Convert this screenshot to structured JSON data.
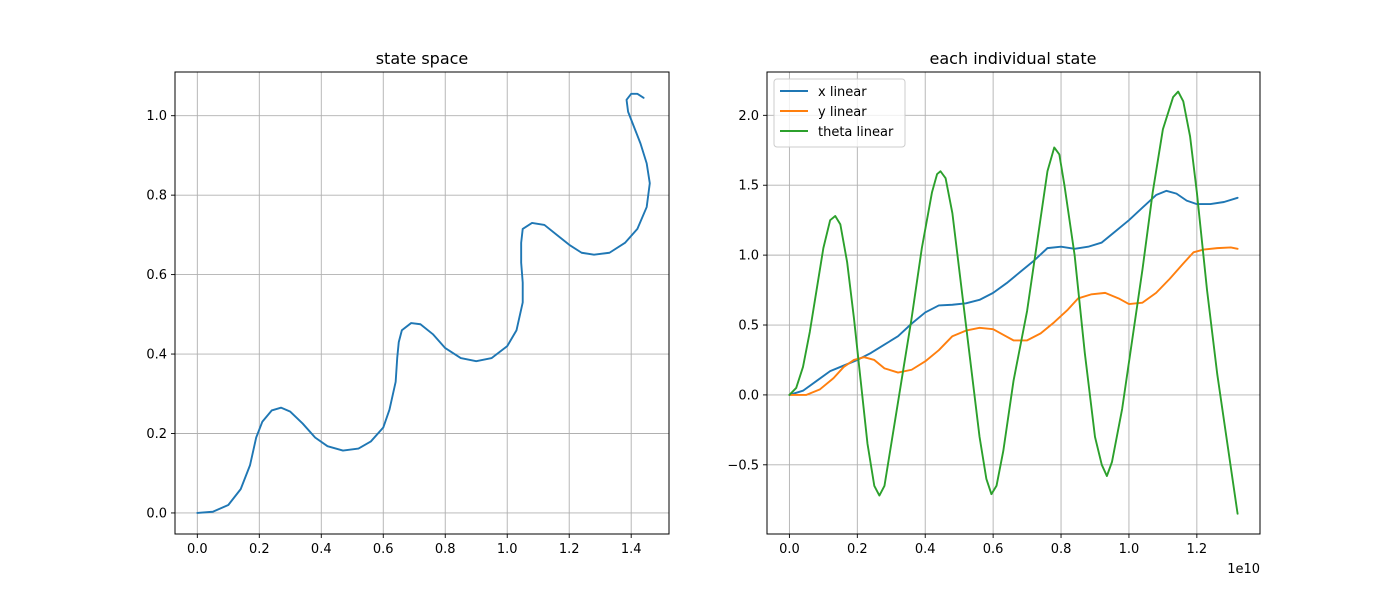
{
  "chart_data": [
    {
      "type": "line",
      "title": "state space",
      "xlabel": "",
      "ylabel": "",
      "xlim": [
        -0.072,
        1.522
      ],
      "ylim": [
        -0.053,
        1.11
      ],
      "xticks": [
        "0.0",
        "0.2",
        "0.4",
        "0.6",
        "0.8",
        "1.0",
        "1.2",
        "1.4"
      ],
      "yticks": [
        "0.0",
        "0.2",
        "0.4",
        "0.6",
        "0.8",
        "1.0"
      ],
      "grid": true,
      "series": [
        {
          "color": "#1f77b4",
          "points": [
            [
              0,
              0
            ],
            [
              0.05,
              0.003
            ],
            [
              0.1,
              0.02
            ],
            [
              0.14,
              0.06
            ],
            [
              0.17,
              0.12
            ],
            [
              0.19,
              0.19
            ],
            [
              0.21,
              0.23
            ],
            [
              0.24,
              0.258
            ],
            [
              0.27,
              0.265
            ],
            [
              0.3,
              0.255
            ],
            [
              0.34,
              0.225
            ],
            [
              0.38,
              0.19
            ],
            [
              0.42,
              0.168
            ],
            [
              0.47,
              0.157
            ],
            [
              0.52,
              0.162
            ],
            [
              0.56,
              0.18
            ],
            [
              0.6,
              0.215
            ],
            [
              0.62,
              0.26
            ],
            [
              0.64,
              0.33
            ],
            [
              0.645,
              0.39
            ],
            [
              0.65,
              0.43
            ],
            [
              0.66,
              0.46
            ],
            [
              0.69,
              0.478
            ],
            [
              0.72,
              0.475
            ],
            [
              0.76,
              0.45
            ],
            [
              0.8,
              0.415
            ],
            [
              0.85,
              0.39
            ],
            [
              0.9,
              0.382
            ],
            [
              0.95,
              0.39
            ],
            [
              1.0,
              0.42
            ],
            [
              1.03,
              0.46
            ],
            [
              1.05,
              0.53
            ],
            [
              1.05,
              0.58
            ],
            [
              1.045,
              0.63
            ],
            [
              1.045,
              0.68
            ],
            [
              1.05,
              0.715
            ],
            [
              1.08,
              0.73
            ],
            [
              1.12,
              0.725
            ],
            [
              1.16,
              0.7
            ],
            [
              1.2,
              0.675
            ],
            [
              1.24,
              0.655
            ],
            [
              1.28,
              0.65
            ],
            [
              1.33,
              0.655
            ],
            [
              1.38,
              0.68
            ],
            [
              1.42,
              0.715
            ],
            [
              1.45,
              0.77
            ],
            [
              1.46,
              0.83
            ],
            [
              1.45,
              0.88
            ],
            [
              1.43,
              0.93
            ],
            [
              1.41,
              0.97
            ],
            [
              1.39,
              1.01
            ],
            [
              1.385,
              1.04
            ],
            [
              1.4,
              1.055
            ],
            [
              1.42,
              1.055
            ],
            [
              1.44,
              1.045
            ]
          ]
        }
      ]
    },
    {
      "type": "line",
      "title": "each individual state",
      "xlabel": "",
      "ylabel": "",
      "x_offset_label": "1e10",
      "xlim": [
        -0.66,
        13.86
      ],
      "ylim": [
        -0.995,
        2.31
      ],
      "xticks": [
        "0.0",
        "0.2",
        "0.4",
        "0.6",
        "0.8",
        "1.0",
        "1.2"
      ],
      "yticks": [
        "−0.5",
        "0.0",
        "0.5",
        "1.0",
        "1.5",
        "2.0"
      ],
      "grid": true,
      "legend": "top-left",
      "series": [
        {
          "name": "x linear",
          "color": "#1f77b4",
          "points": [
            [
              0,
              0
            ],
            [
              0.4,
              0.03
            ],
            [
              0.8,
              0.1
            ],
            [
              1.2,
              0.17
            ],
            [
              1.6,
              0.21
            ],
            [
              2.0,
              0.25
            ],
            [
              2.4,
              0.3
            ],
            [
              2.8,
              0.36
            ],
            [
              3.2,
              0.42
            ],
            [
              3.6,
              0.51
            ],
            [
              4.0,
              0.59
            ],
            [
              4.4,
              0.64
            ],
            [
              4.8,
              0.645
            ],
            [
              5.2,
              0.655
            ],
            [
              5.6,
              0.68
            ],
            [
              6.0,
              0.73
            ],
            [
              6.4,
              0.8
            ],
            [
              6.8,
              0.88
            ],
            [
              7.2,
              0.96
            ],
            [
              7.6,
              1.05
            ],
            [
              8.0,
              1.06
            ],
            [
              8.4,
              1.045
            ],
            [
              8.8,
              1.06
            ],
            [
              9.2,
              1.09
            ],
            [
              9.6,
              1.17
            ],
            [
              10.0,
              1.25
            ],
            [
              10.4,
              1.34
            ],
            [
              10.8,
              1.43
            ],
            [
              11.1,
              1.46
            ],
            [
              11.4,
              1.44
            ],
            [
              11.7,
              1.39
            ],
            [
              12.0,
              1.365
            ],
            [
              12.4,
              1.365
            ],
            [
              12.8,
              1.38
            ],
            [
              13.2,
              1.41
            ]
          ]
        },
        {
          "name": "y linear",
          "color": "#ff7f0e",
          "points": [
            [
              0,
              0
            ],
            [
              0.5,
              0.0
            ],
            [
              0.9,
              0.04
            ],
            [
              1.3,
              0.12
            ],
            [
              1.6,
              0.2
            ],
            [
              1.9,
              0.25
            ],
            [
              2.2,
              0.27
            ],
            [
              2.5,
              0.25
            ],
            [
              2.8,
              0.19
            ],
            [
              3.2,
              0.16
            ],
            [
              3.6,
              0.18
            ],
            [
              4.0,
              0.24
            ],
            [
              4.4,
              0.32
            ],
            [
              4.8,
              0.42
            ],
            [
              5.2,
              0.46
            ],
            [
              5.6,
              0.48
            ],
            [
              6.0,
              0.47
            ],
            [
              6.3,
              0.43
            ],
            [
              6.6,
              0.39
            ],
            [
              7.0,
              0.39
            ],
            [
              7.4,
              0.44
            ],
            [
              7.8,
              0.52
            ],
            [
              8.2,
              0.61
            ],
            [
              8.5,
              0.69
            ],
            [
              8.9,
              0.72
            ],
            [
              9.3,
              0.73
            ],
            [
              9.7,
              0.69
            ],
            [
              10.0,
              0.65
            ],
            [
              10.4,
              0.66
            ],
            [
              10.8,
              0.73
            ],
            [
              11.2,
              0.83
            ],
            [
              11.6,
              0.94
            ],
            [
              11.9,
              1.02
            ],
            [
              12.2,
              1.04
            ],
            [
              12.6,
              1.05
            ],
            [
              13.0,
              1.055
            ],
            [
              13.2,
              1.045
            ]
          ]
        },
        {
          "name": "theta linear",
          "color": "#2ca02c",
          "points": [
            [
              0,
              0
            ],
            [
              0.2,
              0.05
            ],
            [
              0.4,
              0.2
            ],
            [
              0.6,
              0.45
            ],
            [
              0.8,
              0.75
            ],
            [
              1.0,
              1.05
            ],
            [
              1.2,
              1.25
            ],
            [
              1.35,
              1.28
            ],
            [
              1.5,
              1.22
            ],
            [
              1.7,
              0.95
            ],
            [
              1.9,
              0.55
            ],
            [
              2.1,
              0.1
            ],
            [
              2.3,
              -0.35
            ],
            [
              2.5,
              -0.65
            ],
            [
              2.65,
              -0.72
            ],
            [
              2.8,
              -0.65
            ],
            [
              3.0,
              -0.35
            ],
            [
              3.3,
              0.1
            ],
            [
              3.6,
              0.55
            ],
            [
              3.9,
              1.05
            ],
            [
              4.2,
              1.45
            ],
            [
              4.35,
              1.58
            ],
            [
              4.45,
              1.6
            ],
            [
              4.6,
              1.55
            ],
            [
              4.8,
              1.3
            ],
            [
              5.0,
              0.9
            ],
            [
              5.3,
              0.3
            ],
            [
              5.6,
              -0.3
            ],
            [
              5.8,
              -0.6
            ],
            [
              5.95,
              -0.71
            ],
            [
              6.1,
              -0.65
            ],
            [
              6.3,
              -0.4
            ],
            [
              6.6,
              0.1
            ],
            [
              7.0,
              0.6
            ],
            [
              7.3,
              1.1
            ],
            [
              7.6,
              1.6
            ],
            [
              7.8,
              1.77
            ],
            [
              7.95,
              1.72
            ],
            [
              8.1,
              1.5
            ],
            [
              8.4,
              1.0
            ],
            [
              8.7,
              0.3
            ],
            [
              9.0,
              -0.3
            ],
            [
              9.2,
              -0.5
            ],
            [
              9.35,
              -0.58
            ],
            [
              9.5,
              -0.48
            ],
            [
              9.8,
              -0.1
            ],
            [
              10.1,
              0.4
            ],
            [
              10.4,
              0.9
            ],
            [
              10.7,
              1.45
            ],
            [
              11.0,
              1.9
            ],
            [
              11.3,
              2.13
            ],
            [
              11.45,
              2.17
            ],
            [
              11.6,
              2.1
            ],
            [
              11.8,
              1.85
            ],
            [
              12.0,
              1.45
            ],
            [
              12.3,
              0.75
            ],
            [
              12.6,
              0.15
            ],
            [
              12.9,
              -0.35
            ],
            [
              13.2,
              -0.85
            ]
          ]
        }
      ]
    }
  ]
}
